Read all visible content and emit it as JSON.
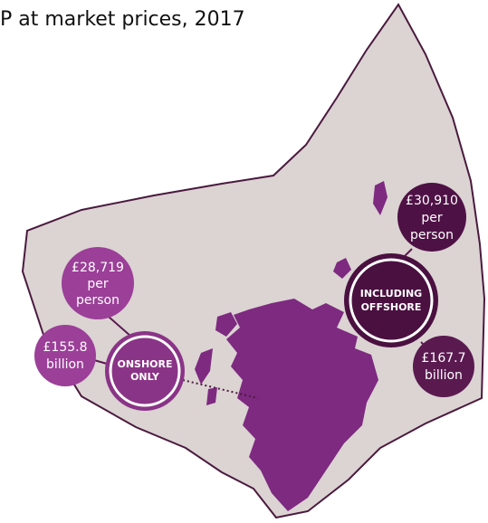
{
  "title": "P at market prices, 2017",
  "onshore": {
    "label": [
      "ONSHORE",
      "ONLY"
    ],
    "per_person": [
      "£28,719",
      "per",
      "person"
    ],
    "total": [
      "£155.8",
      "billion"
    ]
  },
  "offshore": {
    "label": [
      "INCLUDING",
      "OFFSHORE"
    ],
    "per_person": [
      "£30,910",
      "per",
      "person"
    ],
    "total": [
      "£167.7",
      "billion"
    ]
  }
}
